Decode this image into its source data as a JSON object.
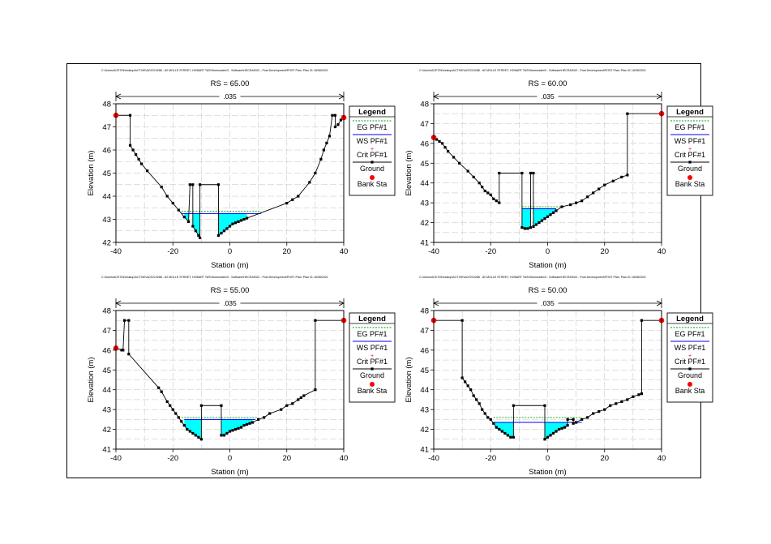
{
  "header_path": "C:\\Users\\ACE70\\Desktop\\ACTIVE\\ACE210286 - 82 MOLLE STREET, HOBART TAS\\Stormwater\\3 - Software\\HECRAS\\02 - Post Development\\POST     Plan: Plan 01    18/08/2021",
  "legend": {
    "title": "Legend",
    "items": [
      "EG PF#1",
      "WS PF#1",
      "Crit PF#1",
      "Ground",
      "Bank Sta"
    ]
  },
  "colors": {
    "eg": "#00a000",
    "ws": "#0000ff",
    "crit": "#ff0000",
    "ground": "#000000",
    "bank": "#ff0000",
    "water": "#00ffff",
    "grid": "#c0c0c0"
  },
  "chart_data": [
    {
      "type": "line",
      "title": "RS = 65.00",
      "manning": ".035",
      "xlabel": "Station (m)",
      "ylabel": "Elevation (m)",
      "xlim": [
        -40,
        40
      ],
      "ylim": [
        42,
        48
      ],
      "xticks": [
        "-40",
        "-20",
        "0",
        "20",
        "40"
      ],
      "yticks": [
        "42",
        "43",
        "44",
        "45",
        "46",
        "47",
        "48"
      ],
      "ground": [
        [
          -40,
          47.5
        ],
        [
          -35,
          47.5
        ],
        [
          -35,
          46.2
        ],
        [
          -34,
          46
        ],
        [
          -33,
          45.8
        ],
        [
          -32,
          45.6
        ],
        [
          -31,
          45.4
        ],
        [
          -29,
          45.1
        ],
        [
          -24,
          44.4
        ],
        [
          -22,
          44
        ],
        [
          -20,
          43.7
        ],
        [
          -18,
          43.4
        ],
        [
          -16,
          43.1
        ],
        [
          -14.5,
          42.9
        ],
        [
          -14,
          44.5
        ],
        [
          -13,
          44.5
        ],
        [
          -13,
          42.7
        ],
        [
          -12,
          42.5
        ],
        [
          -11,
          42.3
        ],
        [
          -10.5,
          42.2
        ],
        [
          -10.5,
          44.5
        ],
        [
          -4,
          44.5
        ],
        [
          -4,
          42.3
        ],
        [
          -3,
          42.4
        ],
        [
          -2,
          42.5
        ],
        [
          -1,
          42.6
        ],
        [
          0,
          42.7
        ],
        [
          1,
          42.8
        ],
        [
          2,
          42.85
        ],
        [
          3,
          42.9
        ],
        [
          4,
          42.95
        ],
        [
          5,
          43
        ],
        [
          6,
          43.05
        ],
        [
          20,
          43.7
        ],
        [
          22,
          43.85
        ],
        [
          24,
          44
        ],
        [
          28,
          44.6
        ],
        [
          30,
          45
        ],
        [
          32,
          45.6
        ],
        [
          33,
          46
        ],
        [
          34,
          46.3
        ],
        [
          35,
          46.6
        ],
        [
          36,
          47.5
        ],
        [
          37,
          47.5
        ],
        [
          37,
          47
        ],
        [
          38,
          47.1
        ],
        [
          39,
          47.3
        ],
        [
          40,
          47.4
        ]
      ],
      "ws": [
        [
          -17,
          43.25
        ],
        [
          -10.5,
          43.25
        ],
        [
          -4,
          43.25
        ],
        [
          11,
          43.25
        ]
      ],
      "eg": [
        [
          -17,
          43.35
        ],
        [
          11,
          43.35
        ]
      ],
      "banks": [
        [
          -40,
          47.5
        ],
        [
          40,
          47.4
        ]
      ]
    },
    {
      "type": "line",
      "title": "RS = 60.00",
      "manning": ".035",
      "xlabel": "Station (m)",
      "ylabel": "Elevation (m)",
      "xlim": [
        -40,
        40
      ],
      "ylim": [
        41,
        48
      ],
      "xticks": [
        "-40",
        "-20",
        "0",
        "20",
        "40"
      ],
      "yticks": [
        "41",
        "42",
        "43",
        "44",
        "45",
        "46",
        "47",
        "48"
      ],
      "ground": [
        [
          -40,
          46.3
        ],
        [
          -39,
          46.2
        ],
        [
          -38,
          46.1
        ],
        [
          -37,
          46
        ],
        [
          -36,
          45.8
        ],
        [
          -35,
          45.6
        ],
        [
          -33,
          45.3
        ],
        [
          -31,
          45
        ],
        [
          -28,
          44.6
        ],
        [
          -26,
          44.3
        ],
        [
          -24,
          44
        ],
        [
          -23,
          43.8
        ],
        [
          -22,
          43.6
        ],
        [
          -21,
          43.5
        ],
        [
          -20,
          43.4
        ],
        [
          -19,
          43.2
        ],
        [
          -18,
          43.1
        ],
        [
          -17,
          43
        ],
        [
          -17,
          44.5
        ],
        [
          -9,
          44.5
        ],
        [
          -9,
          41.75
        ],
        [
          -8,
          41.7
        ],
        [
          -7,
          41.7
        ],
        [
          -6,
          41.75
        ],
        [
          -6,
          44.5
        ],
        [
          -5,
          44.5
        ],
        [
          -5,
          41.8
        ],
        [
          -4,
          41.9
        ],
        [
          -3,
          42
        ],
        [
          -2,
          42.1
        ],
        [
          -1,
          42.2
        ],
        [
          0,
          42.3
        ],
        [
          1,
          42.4
        ],
        [
          2,
          42.5
        ],
        [
          3,
          42.6
        ],
        [
          5,
          42.8
        ],
        [
          8,
          42.9
        ],
        [
          10,
          43
        ],
        [
          12,
          43.1
        ],
        [
          14,
          43.3
        ],
        [
          16,
          43.5
        ],
        [
          18,
          43.7
        ],
        [
          20,
          43.9
        ],
        [
          23,
          44.1
        ],
        [
          26,
          44.3
        ],
        [
          28,
          44.4
        ],
        [
          28,
          47.5
        ],
        [
          40,
          47.5
        ]
      ],
      "ws": [
        [
          -9,
          42.7
        ],
        [
          3,
          42.7
        ]
      ],
      "eg": [
        [
          -9,
          42.8
        ],
        [
          6,
          42.8
        ]
      ],
      "banks": [
        [
          -40,
          46.3
        ],
        [
          40,
          47.5
        ]
      ]
    },
    {
      "type": "line",
      "title": "RS = 55.00",
      "manning": ".035",
      "xlabel": "Station (m)",
      "ylabel": "Elevation (m)",
      "xlim": [
        -40,
        40
      ],
      "ylim": [
        41,
        48
      ],
      "xticks": [
        "-40",
        "-20",
        "0",
        "20",
        "40"
      ],
      "yticks": [
        "41",
        "42",
        "43",
        "44",
        "45",
        "46",
        "47",
        "48"
      ],
      "ground": [
        [
          -40,
          46.1
        ],
        [
          -38,
          46
        ],
        [
          -37.5,
          46
        ],
        [
          -37,
          47.5
        ],
        [
          -35.5,
          47.5
        ],
        [
          -35.5,
          45.8
        ],
        [
          -25,
          44.1
        ],
        [
          -24,
          43.9
        ],
        [
          -22,
          43.4
        ],
        [
          -21,
          43.2
        ],
        [
          -20,
          43
        ],
        [
          -19,
          42.8
        ],
        [
          -18,
          42.6
        ],
        [
          -17,
          42.4
        ],
        [
          -16,
          42.2
        ],
        [
          -15,
          42
        ],
        [
          -14,
          41.9
        ],
        [
          -13,
          41.8
        ],
        [
          -12,
          41.7
        ],
        [
          -11,
          41.6
        ],
        [
          -10,
          41.5
        ],
        [
          -10,
          43.2
        ],
        [
          -3,
          43.2
        ],
        [
          -3,
          41.7
        ],
        [
          -2,
          41.7
        ],
        [
          -1,
          41.8
        ],
        [
          0,
          41.9
        ],
        [
          1,
          41.95
        ],
        [
          2,
          42
        ],
        [
          3,
          42.05
        ],
        [
          4,
          42.1
        ],
        [
          5,
          42.2
        ],
        [
          6,
          42.25
        ],
        [
          7,
          42.3
        ],
        [
          8,
          42.35
        ],
        [
          10,
          42.5
        ],
        [
          12,
          42.6
        ],
        [
          14,
          42.8
        ],
        [
          18,
          43
        ],
        [
          20,
          43.2
        ],
        [
          22,
          43.3
        ],
        [
          24,
          43.5
        ],
        [
          25,
          43.6
        ],
        [
          26,
          43.7
        ],
        [
          30,
          44
        ],
        [
          30,
          47.5
        ],
        [
          40,
          47.5
        ]
      ],
      "ws": [
        [
          -16,
          42.5
        ],
        [
          -10,
          42.5
        ],
        [
          -3,
          42.5
        ],
        [
          9,
          42.5
        ]
      ],
      "eg": [
        [
          -17,
          42.6
        ],
        [
          10,
          42.6
        ]
      ],
      "banks": [
        [
          -40,
          46.1
        ],
        [
          40,
          47.5
        ]
      ]
    },
    {
      "type": "line",
      "title": "RS = 50.00",
      "manning": ".035",
      "xlabel": "Station (m)",
      "ylabel": "Elevation (m)",
      "xlim": [
        -40,
        40
      ],
      "ylim": [
        41,
        48
      ],
      "xticks": [
        "-40",
        "-20",
        "0",
        "20",
        "40"
      ],
      "yticks": [
        "41",
        "42",
        "43",
        "44",
        "45",
        "46",
        "47",
        "48"
      ],
      "ground": [
        [
          -40,
          47.5
        ],
        [
          -30,
          47.5
        ],
        [
          -30,
          44.6
        ],
        [
          -29,
          44.4
        ],
        [
          -28,
          44.2
        ],
        [
          -27,
          44
        ],
        [
          -26,
          43.7
        ],
        [
          -25,
          43.5
        ],
        [
          -24,
          43.3
        ],
        [
          -23,
          43
        ],
        [
          -22,
          42.8
        ],
        [
          -21,
          42.6
        ],
        [
          -20,
          42.5
        ],
        [
          -19,
          42.3
        ],
        [
          -18,
          42.1
        ],
        [
          -17,
          42
        ],
        [
          -16,
          41.9
        ],
        [
          -15,
          41.8
        ],
        [
          -14,
          41.7
        ],
        [
          -13,
          41.6
        ],
        [
          -12,
          41.6
        ],
        [
          -12,
          43.2
        ],
        [
          -1,
          43.2
        ],
        [
          -1,
          41.5
        ],
        [
          0,
          41.6
        ],
        [
          1,
          41.7
        ],
        [
          2,
          41.8
        ],
        [
          3,
          41.9
        ],
        [
          4,
          42
        ],
        [
          5,
          42.05
        ],
        [
          6,
          42.1
        ],
        [
          7,
          42.2
        ],
        [
          7,
          42.5
        ],
        [
          9,
          42.5
        ],
        [
          9,
          42.3
        ],
        [
          10,
          42.35
        ],
        [
          12,
          42.5
        ],
        [
          14,
          42.6
        ],
        [
          16,
          42.8
        ],
        [
          18,
          42.9
        ],
        [
          20,
          43
        ],
        [
          22,
          43.2
        ],
        [
          24,
          43.3
        ],
        [
          26,
          43.4
        ],
        [
          28,
          43.5
        ],
        [
          30,
          43.65
        ],
        [
          32,
          43.75
        ],
        [
          33,
          43.8
        ],
        [
          33,
          47.5
        ],
        [
          40,
          47.5
        ]
      ],
      "ws": [
        [
          -19,
          42.35
        ],
        [
          -12,
          42.35
        ],
        [
          -1,
          42.35
        ],
        [
          12,
          42.35
        ]
      ],
      "eg": [
        [
          -19,
          42.6
        ],
        [
          12,
          42.6
        ]
      ],
      "banks": [
        [
          -40,
          47.5
        ],
        [
          40,
          47.5
        ]
      ]
    }
  ]
}
